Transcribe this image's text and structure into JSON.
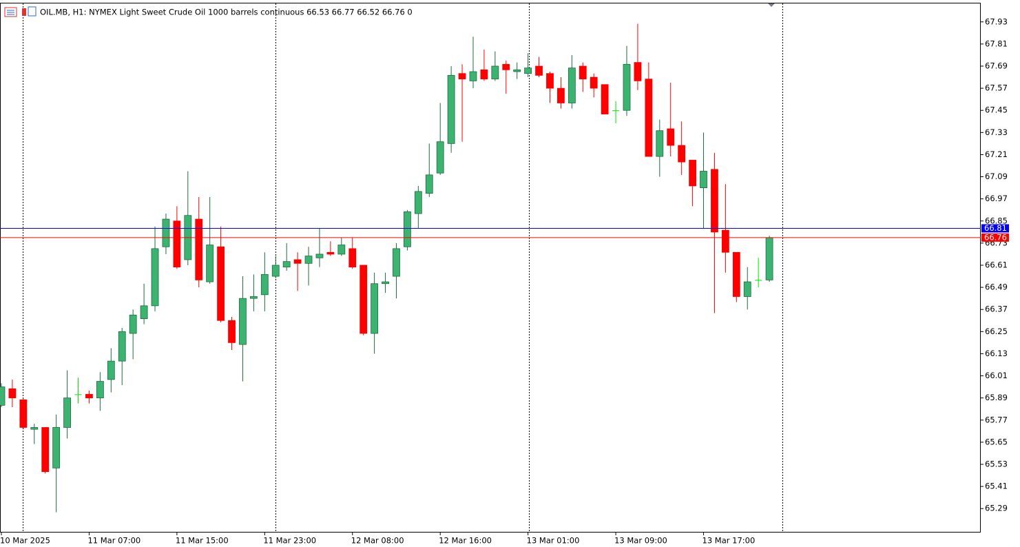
{
  "chart_data": {
    "type": "candlestick",
    "title": "OIL.MB, H1:  NYMEX Light Sweet Crude Oil 1000 barrels continuous  66.53 66.77 66.52 66.76  0",
    "categories": [
      "10 Mar 2025",
      null,
      null,
      null,
      null,
      null,
      null,
      null,
      "11 Mar 07:00",
      null,
      null,
      null,
      null,
      null,
      null,
      null,
      "11 Mar 15:00",
      null,
      null,
      null,
      null,
      null,
      null,
      null,
      "11 Mar 23:00",
      null,
      null,
      null,
      null,
      null,
      null,
      null,
      "12 Mar 08:00",
      null,
      null,
      null,
      null,
      null,
      null,
      null,
      "12 Mar 16:00",
      null,
      null,
      null,
      null,
      null,
      null,
      null,
      "13 Mar 01:00",
      null,
      null,
      null,
      null,
      null,
      null,
      null,
      "13 Mar 09:00",
      null,
      null,
      null,
      null,
      null,
      null,
      null,
      "13 Mar 17:00",
      null,
      null,
      null,
      null,
      null,
      null
    ],
    "series": {
      "open": [
        65.85,
        65.94,
        65.88,
        65.72,
        65.73,
        65.51,
        65.73,
        65.91,
        65.91,
        65.89,
        65.99,
        66.09,
        66.24,
        66.32,
        66.39,
        66.71,
        66.85,
        66.64,
        66.86,
        66.52,
        66.71,
        66.31,
        66.18,
        66.43,
        66.45,
        66.55,
        66.6,
        66.64,
        66.62,
        66.65,
        66.68,
        66.67,
        66.7,
        66.61,
        66.24,
        66.51,
        66.55,
        66.71,
        66.89,
        67.0,
        67.11,
        67.27,
        67.65,
        67.61,
        67.67,
        67.62,
        67.7,
        67.66,
        67.65,
        67.69,
        67.65,
        67.57,
        67.49,
        67.69,
        67.63,
        67.59,
        67.45,
        67.45,
        67.71,
        67.62,
        67.2,
        67.35,
        67.26,
        67.18,
        67.03,
        67.13,
        66.8,
        66.68,
        66.44,
        66.53,
        66.53
      ],
      "high": [
        65.97,
        65.99,
        65.89,
        65.75,
        65.73,
        65.8,
        66.04,
        66.0,
        65.93,
        66.03,
        66.16,
        66.27,
        66.37,
        66.51,
        66.82,
        66.89,
        66.93,
        67.12,
        66.98,
        66.98,
        66.82,
        66.33,
        66.55,
        66.56,
        66.68,
        66.66,
        66.73,
        66.68,
        66.71,
        66.81,
        66.74,
        66.76,
        66.76,
        66.61,
        66.57,
        66.57,
        66.73,
        66.91,
        67.04,
        67.27,
        67.49,
        67.69,
        67.7,
        67.85,
        67.78,
        67.77,
        67.72,
        67.71,
        67.76,
        67.74,
        67.66,
        67.63,
        67.75,
        67.71,
        67.65,
        67.59,
        67.5,
        67.8,
        67.92,
        67.71,
        67.4,
        67.6,
        67.39,
        67.18,
        67.33,
        67.22,
        67.05,
        66.68,
        66.6,
        66.65,
        66.77
      ],
      "low": [
        65.84,
        65.84,
        65.72,
        65.64,
        65.48,
        65.27,
        65.67,
        65.86,
        65.86,
        65.82,
        65.92,
        65.96,
        66.1,
        66.29,
        66.36,
        66.67,
        66.59,
        66.61,
        66.49,
        66.51,
        66.3,
        66.15,
        65.98,
        66.36,
        66.36,
        66.54,
        66.58,
        66.47,
        66.5,
        66.6,
        66.66,
        66.66,
        66.59,
        66.23,
        66.13,
        66.46,
        66.43,
        66.69,
        66.81,
        66.98,
        67.1,
        67.22,
        67.28,
        67.57,
        67.61,
        67.61,
        67.54,
        67.62,
        67.63,
        67.63,
        67.49,
        67.46,
        67.46,
        67.55,
        67.52,
        67.43,
        67.38,
        67.42,
        67.56,
        67.2,
        67.09,
        67.2,
        67.1,
        66.93,
        66.81,
        66.35,
        66.57,
        66.41,
        66.37,
        66.49,
        66.52
      ],
      "close": [
        65.95,
        65.89,
        65.73,
        65.73,
        65.49,
        65.73,
        65.89,
        65.91,
        65.89,
        65.98,
        66.09,
        66.25,
        66.34,
        66.39,
        66.7,
        66.86,
        66.6,
        66.88,
        66.53,
        66.72,
        66.31,
        66.19,
        66.43,
        66.44,
        66.56,
        66.61,
        66.63,
        66.62,
        66.66,
        66.67,
        66.67,
        66.72,
        66.6,
        66.24,
        66.51,
        66.52,
        66.7,
        66.9,
        67.01,
        67.1,
        67.28,
        67.64,
        67.62,
        67.66,
        67.62,
        67.69,
        67.67,
        67.67,
        67.68,
        67.64,
        67.57,
        67.49,
        67.68,
        67.62,
        67.57,
        67.43,
        67.45,
        67.7,
        67.61,
        67.2,
        67.34,
        67.26,
        67.17,
        67.04,
        67.12,
        66.79,
        66.68,
        66.44,
        66.52,
        66.53,
        66.76
      ]
    },
    "up_color": "#3cb371",
    "down_color": "#ff0000",
    "doji_color": "#00e600",
    "price_lines": [
      {
        "value": 66.81,
        "color": "#0000ff"
      },
      {
        "value": 66.76,
        "color": "#ff0000"
      }
    ],
    "ylim": [
      65.16,
      68.03
    ],
    "yticks": [
      67.93,
      67.81,
      67.69,
      67.57,
      67.45,
      67.33,
      67.21,
      67.09,
      66.97,
      66.85,
      66.73,
      66.61,
      66.49,
      66.37,
      66.25,
      66.13,
      66.01,
      65.89,
      65.77,
      65.65,
      65.53,
      65.41,
      65.29
    ]
  }
}
